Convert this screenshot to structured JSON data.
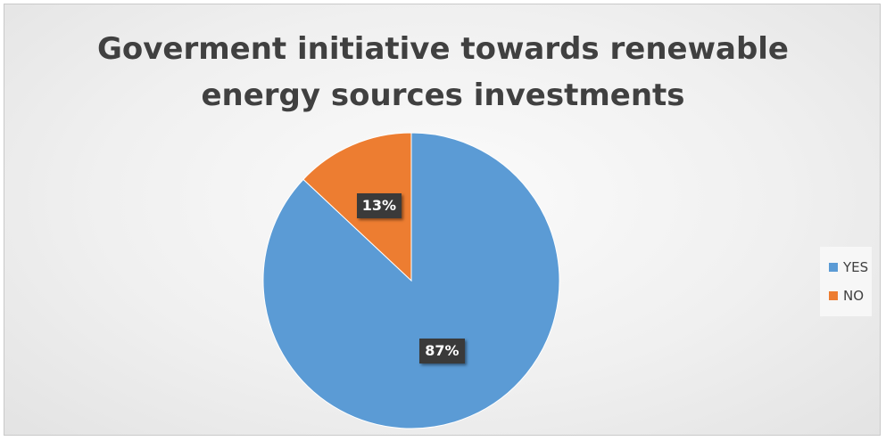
{
  "chart_data": {
    "type": "pie",
    "title_lines": [
      "Goverment initiative towards renewable",
      "energy sources investments"
    ],
    "categories": [
      "YES",
      "NO"
    ],
    "values": [
      87,
      13
    ],
    "data_labels": [
      "87%",
      "13%"
    ],
    "colors": [
      "#5b9bd5",
      "#ed7d31"
    ],
    "legend_position": "right"
  }
}
